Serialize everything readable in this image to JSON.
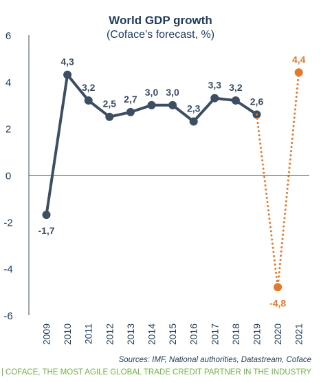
{
  "chart_data": {
    "type": "line",
    "title": "World GDP growth",
    "subtitle": "(Coface’s forecast, %)",
    "ylim": [
      -6,
      6
    ],
    "yticks": [
      -6,
      -4,
      -2,
      0,
      2,
      4,
      6
    ],
    "ytick_labels": [
      "-6",
      "-4",
      "-2",
      "0",
      "2",
      "4",
      "6"
    ],
    "categories": [
      "2009",
      "2010",
      "2011",
      "2012",
      "2013",
      "2014",
      "2015",
      "2016",
      "2017",
      "2018",
      "2019",
      "2020",
      "2021"
    ],
    "grid": false,
    "series": [
      {
        "style": "solid",
        "color": "#3d4e63",
        "values": [
          -1.7,
          4.3,
          3.2,
          2.5,
          2.7,
          3.0,
          3.0,
          2.3,
          3.3,
          3.2,
          2.6,
          null,
          null
        ],
        "labels": [
          "-1,7",
          "4,3",
          "3,2",
          "2,5",
          "2,7",
          "3,0",
          "3,0",
          "2,3",
          "3,3",
          "3,2",
          "2,6",
          "",
          ""
        ]
      },
      {
        "style": "dotted",
        "color": "#e6782a",
        "values": [
          null,
          null,
          null,
          null,
          null,
          null,
          null,
          null,
          null,
          null,
          2.6,
          -4.8,
          4.4
        ],
        "labels": [
          "",
          "",
          "",
          "",
          "",
          "",
          "",
          "",
          "",
          "",
          "",
          "-4,8",
          "4,4"
        ]
      }
    ]
  },
  "source": "Sources: IMF, National authorities, Datastream, Coface",
  "footer": {
    "bar": "|",
    "text": "COFACE, THE MOST AGILE GLOBAL TRADE CREDIT PARTNER IN THE INDUSTRY"
  }
}
